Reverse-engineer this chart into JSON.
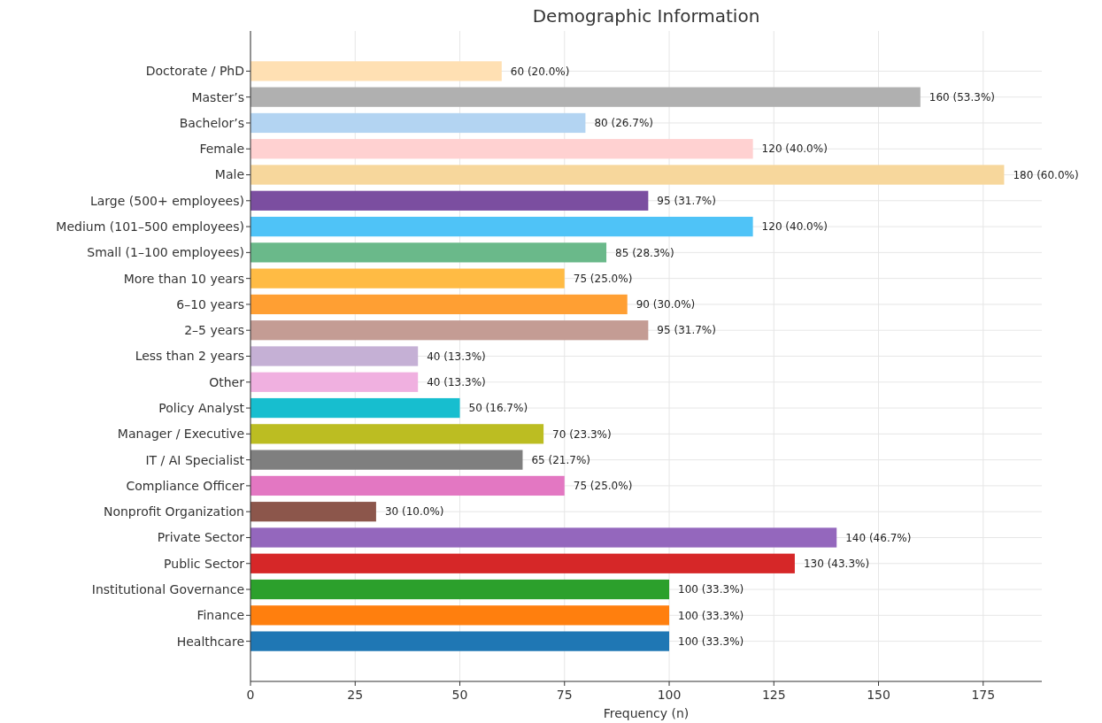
{
  "chart_data": {
    "type": "bar",
    "orientation": "horizontal",
    "title": "Demographic Information",
    "xlabel": "Frequency (n)",
    "categories": [
      "Doctorate / PhD",
      "Master’s",
      "Bachelor’s",
      "Female",
      "Male",
      "Large (500+ employees)",
      "Medium (101–500 employees)",
      "Small (1–100 employees)",
      "More than 10 years",
      "6–10 years",
      "2–5 years",
      "Less than 2 years",
      "Other",
      "Policy Analyst",
      "Manager / Executive",
      "IT / AI Specialist",
      "Compliance Officer",
      "Nonprofit Organization",
      "Private Sector",
      "Public Sector",
      "Institutional Governance",
      "Finance",
      "Healthcare"
    ],
    "values": [
      60,
      160,
      80,
      120,
      180,
      95,
      120,
      85,
      75,
      90,
      95,
      40,
      40,
      50,
      70,
      65,
      75,
      30,
      140,
      130,
      100,
      100,
      100
    ],
    "value_labels": [
      "60 (20.0%)",
      "160 (53.3%)",
      "80 (26.7%)",
      "120 (40.0%)",
      "180 (60.0%)",
      "95 (31.7%)",
      "120 (40.0%)",
      "85 (28.3%)",
      "75 (25.0%)",
      "90 (30.0%)",
      "95 (31.7%)",
      "40 (13.3%)",
      "40 (13.3%)",
      "50 (16.7%)",
      "70 (23.3%)",
      "65 (21.7%)",
      "75 (25.0%)",
      "30 (10.0%)",
      "140 (46.7%)",
      "130 (43.3%)",
      "100 (33.3%)",
      "100 (33.3%)",
      "100 (33.3%)"
    ],
    "colors": [
      "#ffe0b3",
      "#b0b0b0",
      "#b3d4f2",
      "#ffd1d1",
      "#f7d79c",
      "#7b4ea0",
      "#4fc3f7",
      "#6ab98a",
      "#ffbb44",
      "#ff9f33",
      "#c49c94",
      "#c5b0d5",
      "#f0b0e0",
      "#17becf",
      "#bcbd22",
      "#7f7f7f",
      "#e377c2",
      "#8c564b",
      "#9467bd",
      "#d62728",
      "#2ca02c",
      "#ff7f0e",
      "#1f77b4"
    ],
    "xlim": [
      0,
      189
    ],
    "xticks": [
      0,
      25,
      50,
      75,
      100,
      125,
      150,
      175
    ],
    "grid": true
  }
}
